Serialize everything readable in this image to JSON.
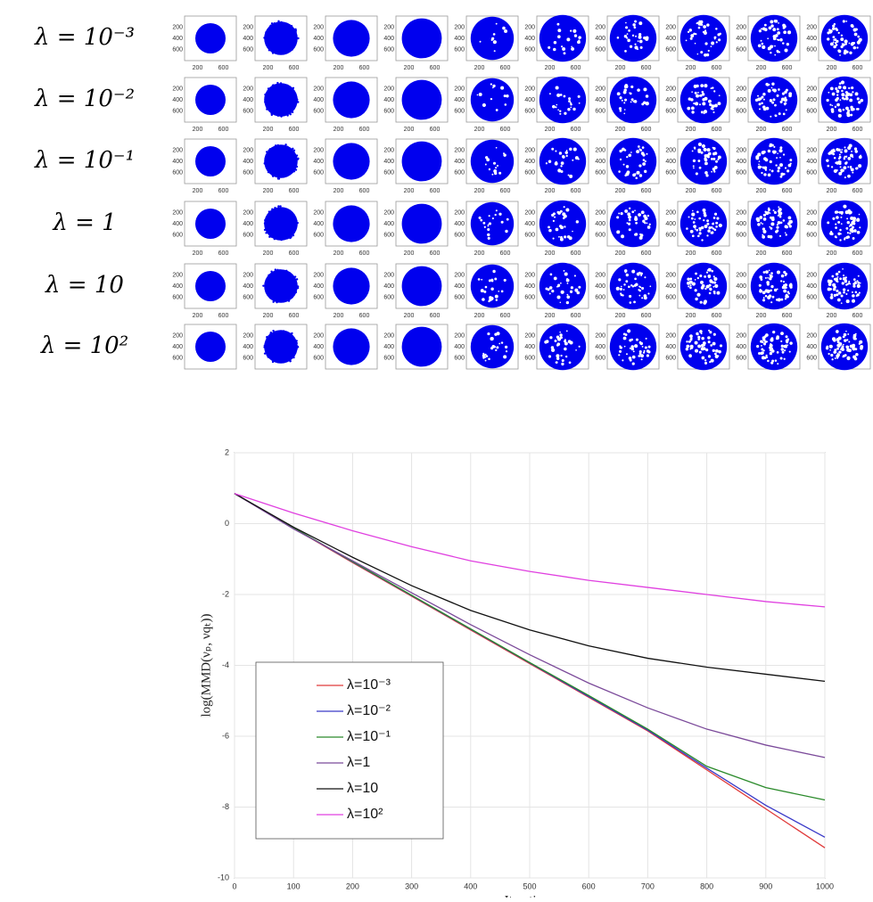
{
  "grid": {
    "row_labels": [
      "λ = 10⁻³",
      "λ = 10⁻²",
      "λ = 10⁻¹",
      "λ = 1",
      "λ = 10",
      "λ = 10²"
    ],
    "yticks": [
      200,
      400,
      600
    ],
    "xticks": [
      200,
      600
    ]
  },
  "chart_data": {
    "type": "line",
    "xlabel": "Iterations",
    "ylabel": "log(MMD(νₚ, νqₜ))",
    "x": [
      0,
      100,
      200,
      300,
      400,
      500,
      600,
      700,
      800,
      900,
      1000
    ],
    "xlim": [
      0,
      1000
    ],
    "ylim": [
      -10,
      2
    ],
    "xticks": [
      0,
      100,
      200,
      300,
      400,
      500,
      600,
      700,
      800,
      900,
      1000
    ],
    "yticks": [
      -10,
      -8,
      -6,
      -4,
      -2,
      0,
      2
    ],
    "grid": true,
    "legend": "lower left",
    "series": [
      {
        "name": "λ=10⁻³",
        "color": "#e03a3a",
        "values": [
          0.85,
          -0.13,
          -1.1,
          -2.05,
          -3.0,
          -3.95,
          -4.9,
          -5.85,
          -6.95,
          -8.05,
          -9.15
        ]
      },
      {
        "name": "λ=10⁻²",
        "color": "#3a3ac8",
        "values": [
          0.85,
          -0.12,
          -1.08,
          -2.03,
          -2.98,
          -3.93,
          -4.88,
          -5.83,
          -6.9,
          -7.95,
          -8.85
        ]
      },
      {
        "name": "λ=10⁻¹",
        "color": "#2a8a2a",
        "values": [
          0.85,
          -0.12,
          -1.07,
          -2.02,
          -2.97,
          -3.92,
          -4.85,
          -5.8,
          -6.85,
          -7.45,
          -7.8
        ]
      },
      {
        "name": "λ=1",
        "color": "#7b4a9a",
        "values": [
          0.85,
          -0.15,
          -1.05,
          -1.95,
          -2.85,
          -3.7,
          -4.5,
          -5.2,
          -5.8,
          -6.25,
          -6.6
        ]
      },
      {
        "name": "λ=10",
        "color": "#111111",
        "values": [
          0.85,
          -0.1,
          -0.95,
          -1.75,
          -2.45,
          -3.0,
          -3.45,
          -3.8,
          -4.05,
          -4.25,
          -4.45
        ]
      },
      {
        "name": "λ=10²",
        "color": "#e040e0",
        "values": [
          0.85,
          0.3,
          -0.2,
          -0.65,
          -1.05,
          -1.35,
          -1.6,
          -1.8,
          -2.0,
          -2.2,
          -2.35
        ]
      }
    ]
  }
}
